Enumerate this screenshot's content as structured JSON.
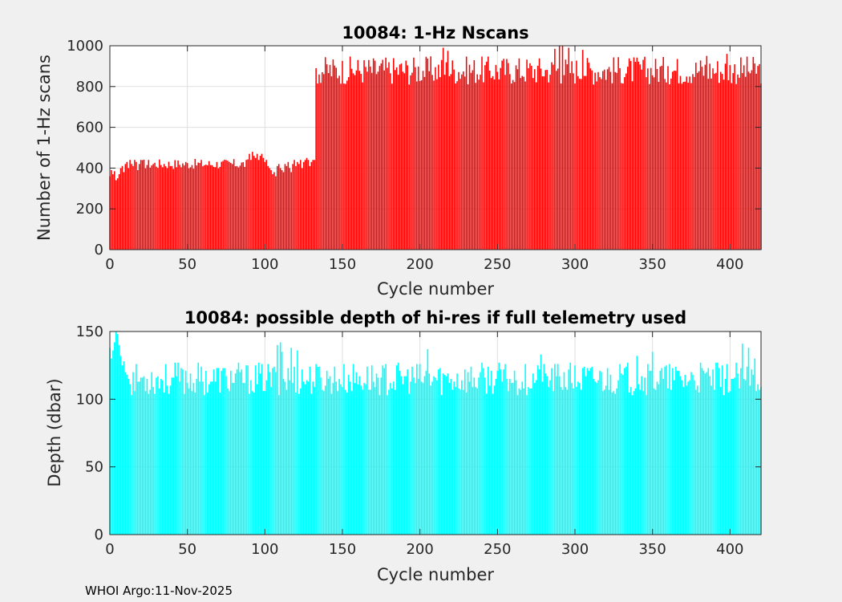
{
  "chart_data": [
    {
      "type": "bar",
      "title": "10084: 1-Hz Nscans",
      "xlabel": "Cycle number",
      "ylabel": "Number of 1-Hz scans",
      "xlim": [
        0,
        420
      ],
      "ylim": [
        0,
        1000
      ],
      "xticks": [
        0,
        50,
        100,
        150,
        200,
        250,
        300,
        350,
        400
      ],
      "xtick_labels": [
        "0",
        "50",
        "100",
        "150",
        "200",
        "250",
        "300",
        "350",
        "400"
      ],
      "yticks": [
        0,
        200,
        400,
        600,
        800,
        1000
      ],
      "ytick_labels": [
        "0",
        "200",
        "400",
        "600",
        "800",
        "1000"
      ],
      "grid": true,
      "color": "#ff0000",
      "series": [
        {
          "name": "Nscans",
          "segments": [
            {
              "from": 0,
              "to": 20,
              "values": [
                360,
                390,
                370,
                385,
                340,
                350,
                370,
                400,
                410,
                380,
                420,
                430,
                400,
                440,
                420,
                410,
                440,
                430,
                390,
                420,
                440
              ]
            },
            {
              "from": 20,
              "to": 130,
              "mean": 420,
              "amp": 25,
              "step": 2
            },
            {
              "from": 90,
              "to": 100,
              "values": [
                470,
                440,
                480,
                460,
                450,
                470,
                440,
                460,
                470,
                450,
                440
              ]
            },
            {
              "from": 100,
              "to": 132,
              "values": [
                430,
                440,
                410,
                400,
                390,
                370,
                380,
                360,
                410,
                420,
                400,
                390,
                380,
                420,
                410,
                430,
                400,
                380,
                420,
                440,
                410,
                430,
                420,
                440,
                400,
                430,
                440,
                450,
                440,
                410,
                430,
                440,
                440
              ]
            },
            {
              "from": 133,
              "to": 420,
              "mean": 880,
              "amp": 70,
              "step": 1
            }
          ],
          "overrides": {
            "215": 990,
            "218": 975,
            "287": 985,
            "290": 1000,
            "292": 1000,
            "296": 990,
            "305": 980,
            "360": 900,
            "385": 950,
            "398": 960
          }
        }
      ]
    },
    {
      "type": "bar",
      "title": "10084: possible depth of hi-res if full telemetry used",
      "xlabel": "Cycle number",
      "ylabel": "Depth (dbar)",
      "xlim": [
        0,
        420
      ],
      "ylim": [
        0,
        150
      ],
      "xticks": [
        0,
        50,
        100,
        150,
        200,
        250,
        300,
        350,
        400
      ],
      "xtick_labels": [
        "0",
        "50",
        "100",
        "150",
        "200",
        "250",
        "300",
        "350",
        "400"
      ],
      "yticks": [
        0,
        50,
        100,
        150
      ],
      "ytick_labels": [
        "0",
        "50",
        "100",
        "150"
      ],
      "grid": true,
      "color": "#00ffff",
      "series": [
        {
          "name": "Depth",
          "segments": [
            {
              "from": 0,
              "to": 12,
              "values": [
                138,
                130,
                136,
                142,
                150,
                148,
                140,
                132,
                125,
                128,
                120,
                118,
                115
              ]
            },
            {
              "from": 12,
              "to": 420,
              "mean": 115,
              "amp": 12,
              "step": 1
            }
          ],
          "overrides": {
            "108": 140,
            "110": 142,
            "111": 135,
            "117": 138,
            "121": 136,
            "205": 137,
            "278": 133,
            "340": 132,
            "350": 135,
            "408": 141,
            "412": 138,
            "416": 130
          }
        }
      ]
    }
  ],
  "footer": {
    "text": "WHOI Argo:11-Nov-2025"
  }
}
